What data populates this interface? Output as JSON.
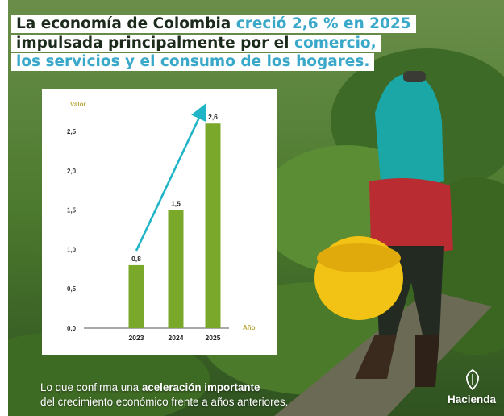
{
  "headline": {
    "line1": {
      "normal": "La economía de Colombia",
      "accent": "creció 2,6 % en 2025"
    },
    "line2": {
      "normal": "impulsada principalmente por el",
      "accent": "comercio,"
    },
    "line3": {
      "accent": "los servicios y el consumo de los hogares."
    }
  },
  "footer": {
    "line1_normal": "Lo que confirma una",
    "line1_bold": "aceleración importante",
    "line2": "del crecimiento económico frente a años anteriores."
  },
  "brand": {
    "name": "Hacienda",
    "icon": "coat-of-arms-icon"
  },
  "colors": {
    "accent": "#3aa8c9",
    "bar": "#7aa82a",
    "axis_label": "#b7a63a",
    "arrow": "#1fb5c7"
  },
  "chart_data": {
    "type": "bar",
    "categories": [
      "2023",
      "2024",
      "2025"
    ],
    "values": [
      0.8,
      1.5,
      2.6
    ],
    "data_labels": [
      "0,8",
      "1,5",
      "2,6"
    ],
    "yticks": [
      "0,0",
      "0,5",
      "1,0",
      "1,5",
      "2,0",
      "2,5"
    ],
    "ylim": [
      0,
      2.7
    ],
    "ylabel": "Valor",
    "xlabel": "Año",
    "grid": false,
    "trend_arrow": true
  }
}
